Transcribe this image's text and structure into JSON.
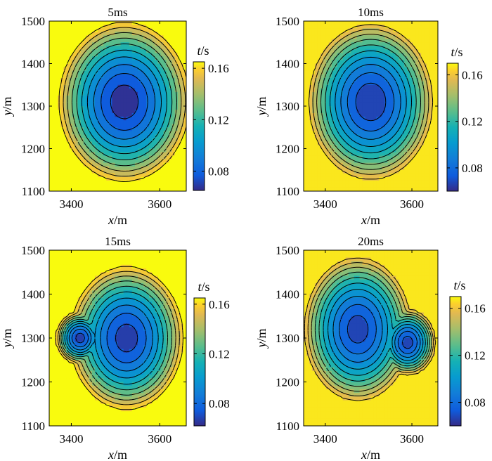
{
  "colorbar_label_t": "t",
  "colorbar_label_unit": "/s",
  "xlabel_x": "x",
  "xlabel_unit": "/m",
  "ylabel_y": "y",
  "ylabel_unit": "/m",
  "chart_data": [
    {
      "type": "heatmap",
      "title": "5ms",
      "xlim": [
        3350,
        3660
      ],
      "ylim": [
        1100,
        1500
      ],
      "xticks": [
        3400,
        3600
      ],
      "yticks": [
        1100,
        1200,
        1300,
        1400,
        1500
      ],
      "clim": [
        0.065,
        0.165
      ],
      "cticks": [
        0.08,
        0.12,
        0.16
      ],
      "cticklabels": [
        "0.08",
        "0.12",
        "0.16"
      ],
      "centers": [
        {
          "x": 3520,
          "y": 1310,
          "depth": 0.096,
          "rx": 150,
          "ry": 190
        }
      ],
      "base": 0.065,
      "levels": [
        0.072,
        0.082,
        0.092,
        0.102,
        0.112,
        0.122,
        0.132,
        0.142,
        0.152,
        0.162
      ]
    },
    {
      "type": "heatmap",
      "title": "10ms",
      "xlim": [
        3350,
        3660
      ],
      "ylim": [
        1100,
        1500
      ],
      "xticks": [
        3400,
        3600
      ],
      "yticks": [
        1100,
        1200,
        1300,
        1400,
        1500
      ],
      "clim": [
        0.06,
        0.17
      ],
      "cticks": [
        0.08,
        0.12,
        0.16
      ],
      "cticklabels": [
        "0.08",
        "0.12",
        "0.16"
      ],
      "centers": [
        {
          "x": 3505,
          "y": 1310,
          "depth": 0.094,
          "rx": 145,
          "ry": 185
        }
      ],
      "base": 0.063,
      "levels": [
        0.072,
        0.082,
        0.092,
        0.102,
        0.112,
        0.122,
        0.132,
        0.142,
        0.152,
        0.162
      ]
    },
    {
      "type": "heatmap",
      "title": "15ms",
      "xlim": [
        3350,
        3660
      ],
      "ylim": [
        1100,
        1500
      ],
      "xticks": [
        3400,
        3600
      ],
      "yticks": [
        1100,
        1200,
        1300,
        1400,
        1500
      ],
      "clim": [
        0.062,
        0.165
      ],
      "cticks": [
        0.08,
        0.12,
        0.16
      ],
      "cticklabels": [
        "0.08",
        "0.12",
        "0.16"
      ],
      "centers": [
        {
          "x": 3525,
          "y": 1300,
          "depth": 0.09,
          "rx": 130,
          "ry": 165
        },
        {
          "x": 3420,
          "y": 1300,
          "depth": 0.05,
          "rx": 55,
          "ry": 60
        }
      ],
      "base": 0.066,
      "levels": [
        0.072,
        0.082,
        0.092,
        0.102,
        0.112,
        0.122,
        0.132,
        0.142,
        0.152,
        0.162
      ]
    },
    {
      "type": "heatmap",
      "title": "20ms",
      "xlim": [
        3350,
        3660
      ],
      "ylim": [
        1100,
        1500
      ],
      "xticks": [
        3400,
        3600
      ],
      "yticks": [
        1100,
        1200,
        1300,
        1400,
        1500
      ],
      "clim": [
        0.06,
        0.17
      ],
      "cticks": [
        0.08,
        0.12,
        0.16
      ],
      "cticklabels": [
        "0.08",
        "0.12",
        "0.16"
      ],
      "centers": [
        {
          "x": 3475,
          "y": 1320,
          "depth": 0.09,
          "rx": 125,
          "ry": 165
        },
        {
          "x": 3590,
          "y": 1290,
          "depth": 0.055,
          "rx": 65,
          "ry": 75
        }
      ],
      "base": 0.066,
      "levels": [
        0.072,
        0.082,
        0.092,
        0.102,
        0.112,
        0.122,
        0.132,
        0.142,
        0.152,
        0.162
      ]
    }
  ]
}
